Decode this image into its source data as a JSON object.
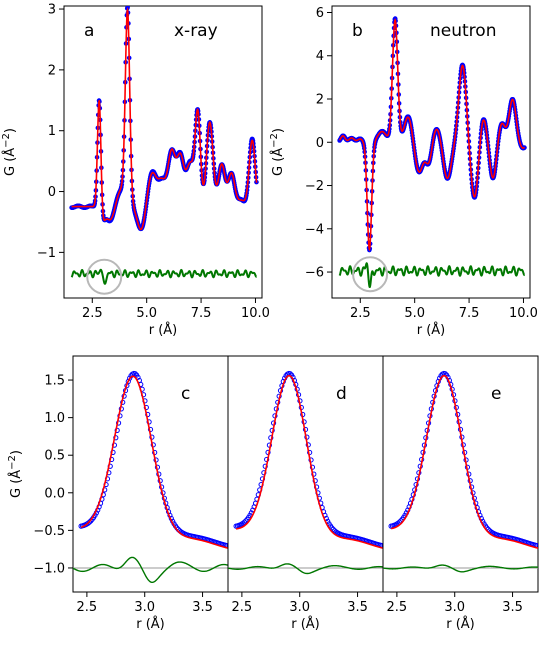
{
  "colors": {
    "data": "#0000ff",
    "fit": "#ff0000",
    "residual": "#007700",
    "baseline": "#9a9a9a",
    "highlight": "#b8b8b8"
  },
  "chart_data": [
    {
      "type": "line",
      "panel": "a",
      "title": "x-ray",
      "xlabel": "r (Å)",
      "ylabel": "G (Å⁻²)",
      "xlim": [
        1.2,
        10.3
      ],
      "ylim": [
        -1.75,
        3.05
      ],
      "xticks": [
        "2.5",
        "5.0",
        "7.5",
        "10.0"
      ],
      "yticks": [
        "-1",
        "0",
        "1",
        "2",
        "3"
      ],
      "residual_offset": -1.35,
      "highlight_circle_at": [
        3.05,
        -1.4
      ],
      "peaks": [
        [
          2.82,
          1.9,
          0.08
        ],
        [
          2.95,
          -0.25,
          0.12
        ],
        [
          3.35,
          -0.25,
          0.2
        ],
        [
          3.85,
          0.3,
          0.25
        ],
        [
          4.12,
          3.1,
          0.1
        ],
        [
          4.75,
          -0.4,
          0.18
        ],
        [
          5.25,
          0.55,
          0.2
        ],
        [
          5.7,
          0.4,
          0.18
        ],
        [
          6.15,
          0.9,
          0.17
        ],
        [
          6.55,
          0.8,
          0.16
        ],
        [
          7.0,
          0.7,
          0.18
        ],
        [
          7.35,
          1.5,
          0.12
        ],
        [
          7.9,
          1.4,
          0.15
        ],
        [
          8.45,
          0.7,
          0.15
        ],
        [
          8.9,
          0.55,
          0.15
        ],
        [
          9.35,
          0.1,
          0.15
        ],
        [
          9.85,
          1.1,
          0.14
        ]
      ],
      "series": [
        {
          "name": "data",
          "style": "markers"
        },
        {
          "name": "fit",
          "style": "line"
        },
        {
          "name": "difference",
          "style": "line"
        }
      ]
    },
    {
      "type": "line",
      "panel": "b",
      "title": "neutron",
      "xlabel": "r (Å)",
      "ylabel": "G (Å⁻²)",
      "xlim": [
        1.2,
        10.3
      ],
      "ylim": [
        -7.2,
        6.3
      ],
      "xticks": [
        "2.5",
        "5.0",
        "7.5",
        "10.0"
      ],
      "yticks": [
        "-6",
        "-4",
        "-2",
        "0",
        "2",
        "4",
        "6"
      ],
      "residual_offset": -5.95,
      "highlight_circle_at": [
        2.95,
        -6.1
      ],
      "peaks": [
        [
          1.7,
          0.3,
          0.1
        ],
        [
          2.1,
          0.2,
          0.12
        ],
        [
          2.5,
          0.15,
          0.12
        ],
        [
          2.92,
          -5.0,
          0.1
        ],
        [
          3.5,
          0.5,
          0.2
        ],
        [
          4.1,
          5.7,
          0.12
        ],
        [
          4.7,
          1.2,
          0.18
        ],
        [
          5.2,
          -1.4,
          0.18
        ],
        [
          5.65,
          -1.0,
          0.15
        ],
        [
          6.0,
          0.7,
          0.18
        ],
        [
          6.5,
          -1.7,
          0.18
        ],
        [
          7.2,
          3.6,
          0.17
        ],
        [
          7.75,
          -2.6,
          0.17
        ],
        [
          8.15,
          1.2,
          0.15
        ],
        [
          8.6,
          -1.7,
          0.15
        ],
        [
          9.0,
          0.9,
          0.15
        ],
        [
          9.5,
          2.0,
          0.16
        ],
        [
          9.95,
          -0.3,
          0.15
        ]
      ],
      "series": [
        {
          "name": "data",
          "style": "markers"
        },
        {
          "name": "fit",
          "style": "line"
        },
        {
          "name": "difference",
          "style": "line"
        }
      ]
    },
    {
      "type": "line",
      "panel": "c",
      "xlabel": "r (Å)",
      "ylabel": "G (Å⁻²)",
      "xlim": [
        2.38,
        3.72
      ],
      "ylim": [
        -1.32,
        1.82
      ],
      "xticks": [
        "2.5",
        "3.0",
        "3.5"
      ],
      "yticks": [
        "-1.0",
        "-0.5",
        "0.0",
        "0.5",
        "1.0",
        "1.5"
      ],
      "baseline": -1.0,
      "data_peak": [
        2.91,
        2.15,
        0.155
      ],
      "fit_peak": [
        2.9,
        2.14,
        0.16
      ],
      "residual_amp": 0.13,
      "series": [
        {
          "name": "data",
          "style": "markers"
        },
        {
          "name": "fit",
          "style": "line"
        },
        {
          "name": "difference",
          "style": "line"
        }
      ]
    },
    {
      "type": "line",
      "panel": "d",
      "xlabel": "r (Å)",
      "xlim": [
        2.38,
        3.72
      ],
      "ylim": [
        -1.32,
        1.82
      ],
      "xticks": [
        "2.5",
        "3.0",
        "3.5"
      ],
      "baseline": -1.0,
      "data_peak": [
        2.91,
        2.15,
        0.155
      ],
      "fit_peak": [
        2.91,
        2.15,
        0.15
      ],
      "residual_amp": 0.05,
      "series": [
        {
          "name": "data",
          "style": "markers"
        },
        {
          "name": "fit",
          "style": "line"
        },
        {
          "name": "difference",
          "style": "line"
        }
      ]
    },
    {
      "type": "line",
      "panel": "e",
      "xlabel": "r (Å)",
      "xlim": [
        2.38,
        3.72
      ],
      "ylim": [
        -1.32,
        1.82
      ],
      "xticks": [
        "2.5",
        "3.0",
        "3.5"
      ],
      "baseline": -1.0,
      "data_peak": [
        2.91,
        2.15,
        0.155
      ],
      "fit_peak": [
        2.91,
        2.15,
        0.153
      ],
      "residual_amp": 0.035,
      "series": [
        {
          "name": "data",
          "style": "markers"
        },
        {
          "name": "fit",
          "style": "line"
        },
        {
          "name": "difference",
          "style": "line"
        }
      ]
    }
  ]
}
